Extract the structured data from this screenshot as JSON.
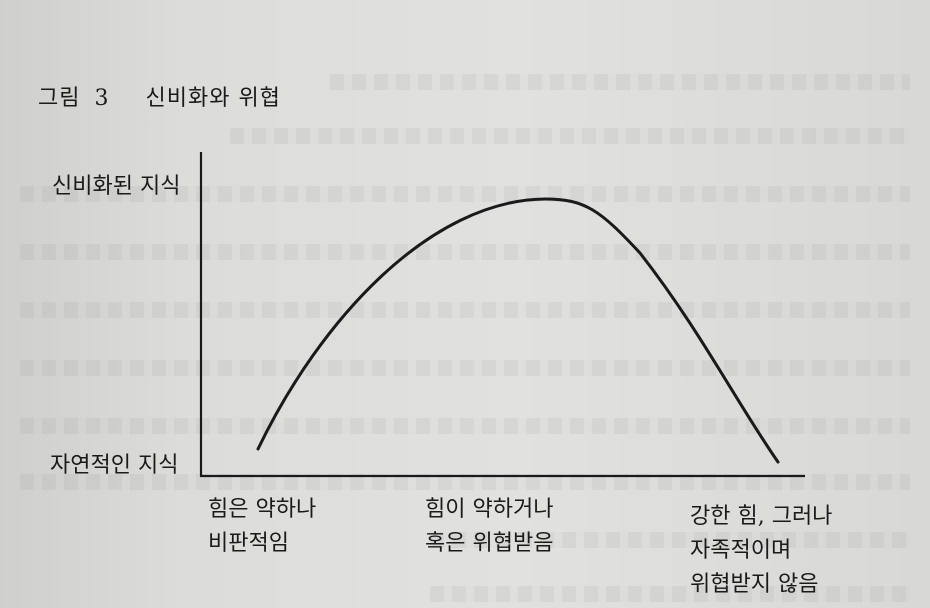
{
  "figure": {
    "label": "그림",
    "number": "3",
    "title": "신비화와 위협"
  },
  "y_axis": {
    "top_label": "신비화된 지식",
    "bottom_label": "자연적인 지식"
  },
  "x_axis": {
    "left_label": [
      "힘은 약하나",
      "비판적임"
    ],
    "middle_label": [
      "힘이 약하거나",
      "혹은 위협받음"
    ],
    "right_label": [
      "강한 힘, 그러나",
      "자족적이며",
      "위협받지 않음"
    ]
  },
  "curve": {
    "description_type": "inverted-u",
    "color": "#1a1a1a"
  }
}
